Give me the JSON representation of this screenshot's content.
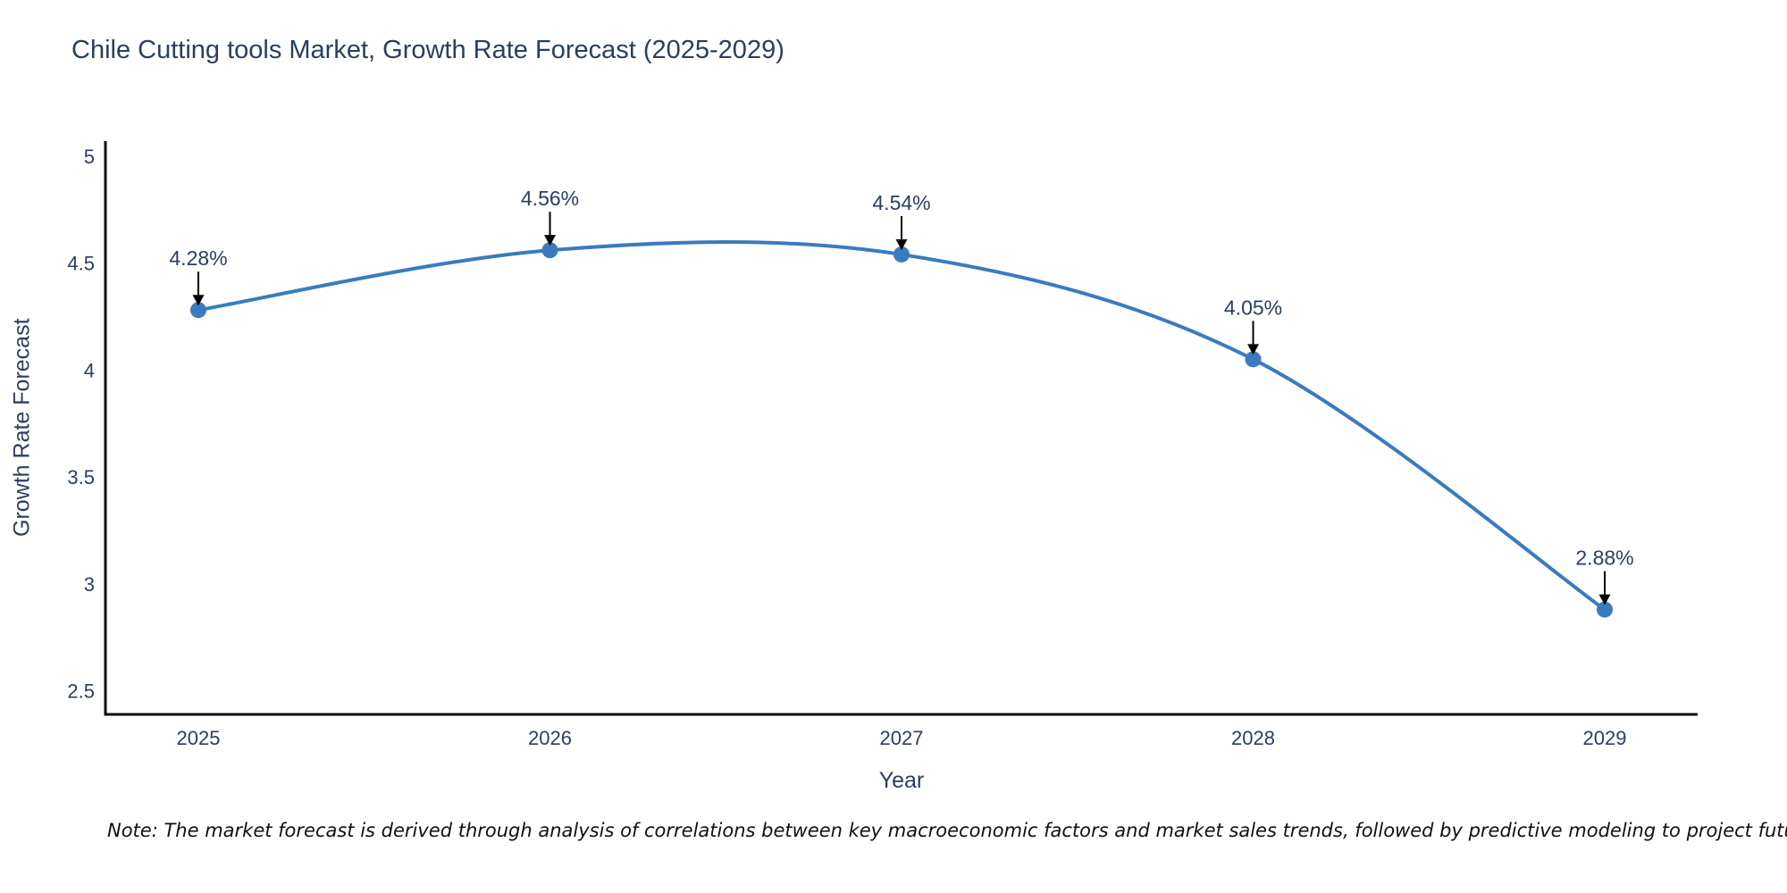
{
  "note": "Note: The market forecast is derived through analysis of correlations between key macroeconomic factors and market sales trends, followed by predictive modeling to project future sales",
  "colors": {
    "line": "#3a7bbf",
    "marker": "#3a7bbf",
    "axis": "#0d0d0d",
    "text": "#2a3f5f",
    "annotation_arrow": "#000000",
    "background": "#ffffff"
  },
  "chart_data": {
    "type": "line",
    "title": "Chile Cutting tools Market, Growth Rate Forecast (2025-2029)",
    "xlabel": "Year",
    "ylabel": "Growth Rate Forecast",
    "categories": [
      "2025",
      "2026",
      "2027",
      "2028",
      "2029"
    ],
    "values": [
      4.28,
      4.56,
      4.54,
      4.05,
      2.88
    ],
    "labels": [
      "4.28%",
      "4.56%",
      "4.54%",
      "4.05%",
      "2.88%"
    ],
    "y_ticks": [
      2.5,
      3,
      3.5,
      4,
      4.5,
      5
    ],
    "y_range": [
      2.39,
      5.07
    ],
    "line_shape": "spline",
    "markers": true,
    "grid": false,
    "legend_position": "none"
  }
}
